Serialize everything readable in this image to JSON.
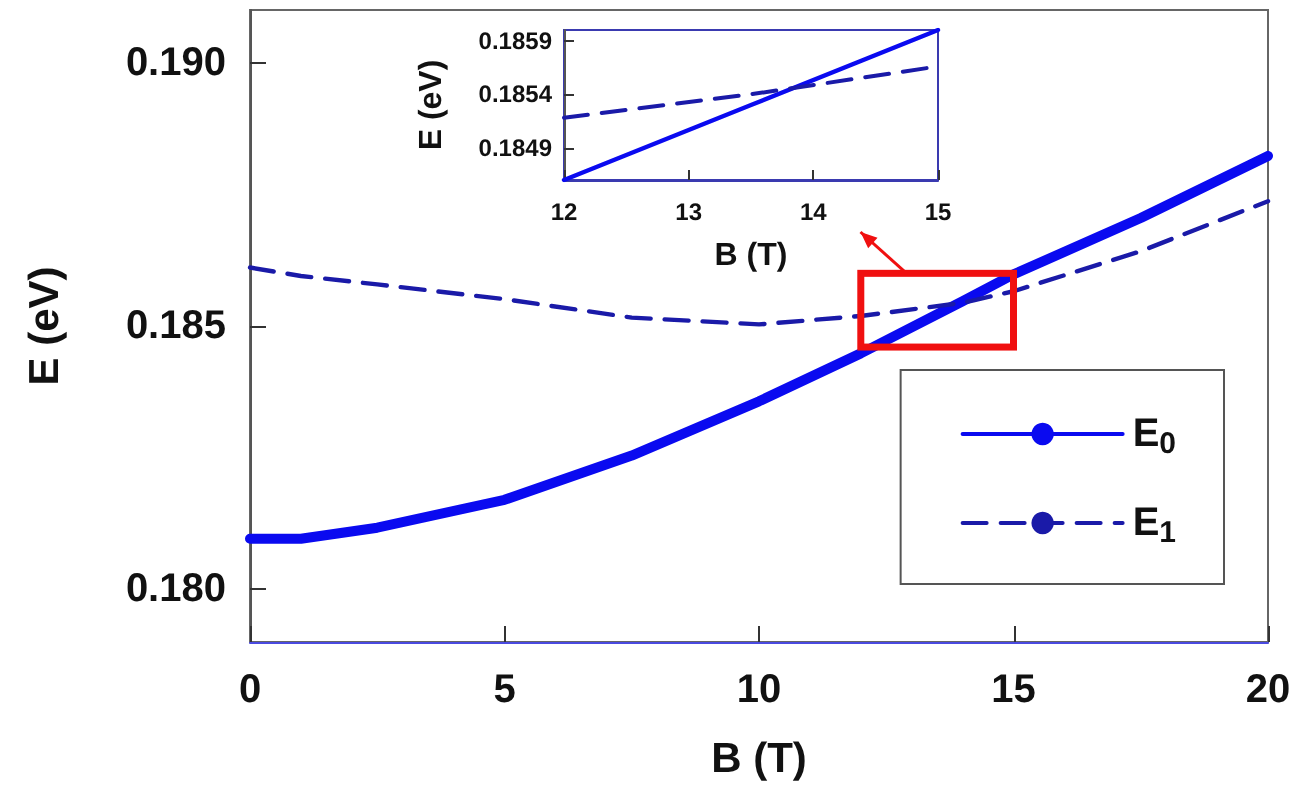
{
  "chart_data": [
    {
      "type": "line",
      "xlabel": "B (T)",
      "ylabel": "E (eV)",
      "x": [
        0,
        1,
        2.5,
        5,
        7.5,
        10,
        12,
        14,
        15,
        17.5,
        20
      ],
      "series": [
        {
          "name": "E$_{0}$",
          "color": "#0a0af0",
          "line_style": "solid",
          "values": [
            0.18096,
            0.18096,
            0.18117,
            0.1817,
            0.18254,
            0.18357,
            0.18448,
            0.18547,
            0.18598,
            0.18705,
            0.18823
          ]
        },
        {
          "name": "E$_{1}$",
          "color": "#1a1aa8",
          "line_style": "dashed",
          "values": [
            0.18611,
            0.18595,
            0.18579,
            0.18551,
            0.18516,
            0.18503,
            0.18519,
            0.18544,
            0.18566,
            0.18642,
            0.18737
          ]
        }
      ],
      "xlim": [
        0,
        20
      ],
      "ylim": [
        0.179,
        0.191
      ],
      "xticks": [
        0,
        5,
        10,
        15,
        20
      ],
      "yticks": [
        {
          "value": 0.18,
          "label": "0.180"
        },
        {
          "value": 0.185,
          "label": "0.185"
        },
        {
          "value": 0.19,
          "label": "0.190"
        }
      ],
      "marker": "none",
      "legend": "bottom right"
    },
    {
      "type": "line",
      "xlabel": "B (T)",
      "ylabel": "E (eV)",
      "x": [
        12,
        13.5,
        15
      ],
      "series": [
        {
          "color": "#0a0af0",
          "line_style": "solid",
          "values": [
            0.1846,
            0.1853,
            0.186
          ]
        },
        {
          "color": "#1a1aa8",
          "line_style": "dashed",
          "values": [
            0.18518,
            0.1854,
            0.18566
          ]
        }
      ],
      "xlim": [
        12,
        15
      ],
      "ylim": [
        0.1846,
        0.186
      ],
      "xticks": [
        12,
        13,
        14,
        15
      ],
      "yticks": [
        0.1849,
        0.1854,
        0.1859
      ],
      "marker": "none"
    }
  ]
}
